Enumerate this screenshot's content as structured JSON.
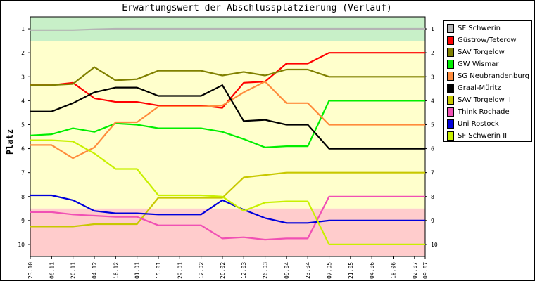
{
  "chart_data": {
    "type": "line",
    "title": "Erwartungswert der Abschlussplatzierung (Verlauf)",
    "ylabel": "Platz",
    "xlabel": "",
    "ylim": [
      1,
      10
    ],
    "y_ticks": [
      "1",
      "2",
      "3",
      "4",
      "5",
      "6",
      "7",
      "8",
      "9",
      "10"
    ],
    "categories": [
      "23.10",
      "06.11",
      "20.11",
      "04.12",
      "18.12",
      "01.01",
      "15.01",
      "29.01",
      "12.02",
      "26.02",
      "12.03",
      "26.03",
      "09.04",
      "23.04",
      "07.05",
      "21.05",
      "04.06",
      "18.06",
      "02.07",
      "09.07"
    ],
    "x_values": [
      0,
      14,
      28,
      42,
      56,
      70,
      84,
      98,
      112,
      126,
      140,
      154,
      168,
      182,
      196,
      210,
      224,
      238,
      252,
      259
    ],
    "zones": [
      {
        "from": 0.5,
        "to": 1.5,
        "color": "#c8f0c8"
      },
      {
        "from": 1.5,
        "to": 8.5,
        "color": "#ffffcc"
      },
      {
        "from": 8.5,
        "to": 10.5,
        "color": "#ffcccc"
      }
    ],
    "legend_position": "right",
    "series": [
      {
        "name": "SF Schwerin",
        "color": "#b4b4b4",
        "points": [
          [
            0,
            1.05
          ],
          [
            14,
            1.05
          ],
          [
            28,
            1.05
          ],
          [
            42,
            1.02
          ],
          [
            56,
            1.0
          ],
          [
            70,
            1.0
          ],
          [
            84,
            1.0
          ],
          [
            98,
            1.0
          ],
          [
            112,
            1.0
          ],
          [
            126,
            1.0
          ],
          [
            140,
            1.0
          ],
          [
            154,
            1.0
          ],
          [
            168,
            1.0
          ],
          [
            182,
            1.0
          ],
          [
            196,
            1.0
          ],
          [
            210,
            1.0
          ],
          [
            224,
            1.0
          ],
          [
            238,
            1.0
          ],
          [
            252,
            1.0
          ],
          [
            259,
            1.0
          ]
        ]
      },
      {
        "name": "Güstrow/Teterow",
        "color": "#ff0000",
        "points": [
          [
            0,
            3.35
          ],
          [
            14,
            3.35
          ],
          [
            28,
            3.25
          ],
          [
            42,
            3.9
          ],
          [
            56,
            4.05
          ],
          [
            70,
            4.05
          ],
          [
            84,
            4.2
          ],
          [
            98,
            4.2
          ],
          [
            112,
            4.2
          ],
          [
            126,
            4.3
          ],
          [
            140,
            3.25
          ],
          [
            154,
            3.2
          ],
          [
            168,
            2.45
          ],
          [
            182,
            2.45
          ],
          [
            196,
            2.0
          ],
          [
            210,
            2.0
          ],
          [
            224,
            2.0
          ],
          [
            238,
            2.0
          ],
          [
            252,
            2.0
          ],
          [
            259,
            2.0
          ]
        ]
      },
      {
        "name": "SAV Torgelow",
        "color": "#808000",
        "points": [
          [
            0,
            3.35
          ],
          [
            14,
            3.35
          ],
          [
            28,
            3.3
          ],
          [
            42,
            2.6
          ],
          [
            56,
            3.15
          ],
          [
            70,
            3.1
          ],
          [
            84,
            2.75
          ],
          [
            98,
            2.75
          ],
          [
            112,
            2.75
          ],
          [
            126,
            2.95
          ],
          [
            140,
            2.8
          ],
          [
            154,
            2.95
          ],
          [
            168,
            2.7
          ],
          [
            182,
            2.7
          ],
          [
            196,
            3.0
          ],
          [
            210,
            3.0
          ],
          [
            224,
            3.0
          ],
          [
            238,
            3.0
          ],
          [
            252,
            3.0
          ],
          [
            259,
            3.0
          ]
        ]
      },
      {
        "name": "GW Wismar",
        "color": "#00ee00",
        "points": [
          [
            0,
            5.45
          ],
          [
            14,
            5.4
          ],
          [
            28,
            5.15
          ],
          [
            42,
            5.3
          ],
          [
            56,
            4.95
          ],
          [
            70,
            5.0
          ],
          [
            84,
            5.15
          ],
          [
            98,
            5.15
          ],
          [
            112,
            5.15
          ],
          [
            126,
            5.3
          ],
          [
            140,
            5.6
          ],
          [
            154,
            5.95
          ],
          [
            168,
            5.9
          ],
          [
            182,
            5.9
          ],
          [
            196,
            4.0
          ],
          [
            210,
            4.0
          ],
          [
            224,
            4.0
          ],
          [
            238,
            4.0
          ],
          [
            252,
            4.0
          ],
          [
            259,
            4.0
          ]
        ]
      },
      {
        "name": "SG Neubrandenburg",
        "color": "#ff8c3c",
        "points": [
          [
            0,
            5.85
          ],
          [
            14,
            5.85
          ],
          [
            28,
            6.4
          ],
          [
            42,
            5.95
          ],
          [
            56,
            4.9
          ],
          [
            70,
            4.9
          ],
          [
            84,
            4.25
          ],
          [
            98,
            4.25
          ],
          [
            112,
            4.25
          ],
          [
            126,
            4.2
          ],
          [
            140,
            3.65
          ],
          [
            154,
            3.2
          ],
          [
            168,
            4.1
          ],
          [
            182,
            4.1
          ],
          [
            196,
            5.0
          ],
          [
            210,
            5.0
          ],
          [
            224,
            5.0
          ],
          [
            238,
            5.0
          ],
          [
            252,
            5.0
          ],
          [
            259,
            5.0
          ]
        ]
      },
      {
        "name": "Graal-Müritz",
        "color": "#000000",
        "points": [
          [
            0,
            4.45
          ],
          [
            14,
            4.45
          ],
          [
            28,
            4.1
          ],
          [
            42,
            3.65
          ],
          [
            56,
            3.45
          ],
          [
            70,
            3.45
          ],
          [
            84,
            3.8
          ],
          [
            98,
            3.8
          ],
          [
            112,
            3.8
          ],
          [
            126,
            3.35
          ],
          [
            140,
            4.85
          ],
          [
            154,
            4.8
          ],
          [
            168,
            5.0
          ],
          [
            182,
            5.0
          ],
          [
            196,
            6.0
          ],
          [
            210,
            6.0
          ],
          [
            224,
            6.0
          ],
          [
            238,
            6.0
          ],
          [
            252,
            6.0
          ],
          [
            259,
            6.0
          ]
        ]
      },
      {
        "name": "SAV Torgelow II",
        "color": "#c8c800",
        "points": [
          [
            0,
            9.25
          ],
          [
            14,
            9.25
          ],
          [
            28,
            9.25
          ],
          [
            42,
            9.15
          ],
          [
            56,
            9.15
          ],
          [
            70,
            9.15
          ],
          [
            84,
            8.05
          ],
          [
            98,
            8.05
          ],
          [
            112,
            8.05
          ],
          [
            126,
            8.05
          ],
          [
            140,
            7.2
          ],
          [
            154,
            7.1
          ],
          [
            168,
            7.0
          ],
          [
            182,
            7.0
          ],
          [
            196,
            7.0
          ],
          [
            210,
            7.0
          ],
          [
            224,
            7.0
          ],
          [
            238,
            7.0
          ],
          [
            252,
            7.0
          ],
          [
            259,
            7.0
          ]
        ]
      },
      {
        "name": "Think Rochade",
        "color": "#f050b4",
        "points": [
          [
            0,
            8.65
          ],
          [
            14,
            8.65
          ],
          [
            28,
            8.75
          ],
          [
            42,
            8.8
          ],
          [
            56,
            8.85
          ],
          [
            70,
            8.85
          ],
          [
            84,
            9.2
          ],
          [
            98,
            9.2
          ],
          [
            112,
            9.2
          ],
          [
            126,
            9.75
          ],
          [
            140,
            9.7
          ],
          [
            154,
            9.8
          ],
          [
            168,
            9.75
          ],
          [
            182,
            9.75
          ],
          [
            196,
            8.0
          ],
          [
            210,
            8.0
          ],
          [
            224,
            8.0
          ],
          [
            238,
            8.0
          ],
          [
            252,
            8.0
          ],
          [
            259,
            8.0
          ]
        ]
      },
      {
        "name": "Uni Rostock",
        "color": "#0000dc",
        "points": [
          [
            0,
            7.95
          ],
          [
            14,
            7.95
          ],
          [
            28,
            8.15
          ],
          [
            42,
            8.6
          ],
          [
            56,
            8.7
          ],
          [
            70,
            8.7
          ],
          [
            84,
            8.75
          ],
          [
            98,
            8.75
          ],
          [
            112,
            8.75
          ],
          [
            126,
            8.15
          ],
          [
            140,
            8.55
          ],
          [
            154,
            8.9
          ],
          [
            168,
            9.1
          ],
          [
            182,
            9.1
          ],
          [
            196,
            9.0
          ],
          [
            210,
            9.0
          ],
          [
            224,
            9.0
          ],
          [
            238,
            9.0
          ],
          [
            252,
            9.0
          ],
          [
            259,
            9.0
          ]
        ]
      },
      {
        "name": "SF Schwerin II",
        "color": "#c8f000",
        "points": [
          [
            0,
            5.65
          ],
          [
            14,
            5.65
          ],
          [
            28,
            5.7
          ],
          [
            42,
            6.2
          ],
          [
            56,
            6.85
          ],
          [
            70,
            6.85
          ],
          [
            84,
            7.95
          ],
          [
            98,
            7.95
          ],
          [
            112,
            7.95
          ],
          [
            126,
            8.0
          ],
          [
            140,
            8.6
          ],
          [
            154,
            8.25
          ],
          [
            168,
            8.2
          ],
          [
            182,
            8.2
          ],
          [
            196,
            10.0
          ],
          [
            210,
            10.0
          ],
          [
            224,
            10.0
          ],
          [
            238,
            10.0
          ],
          [
            252,
            10.0
          ],
          [
            259,
            10.0
          ]
        ]
      }
    ]
  }
}
